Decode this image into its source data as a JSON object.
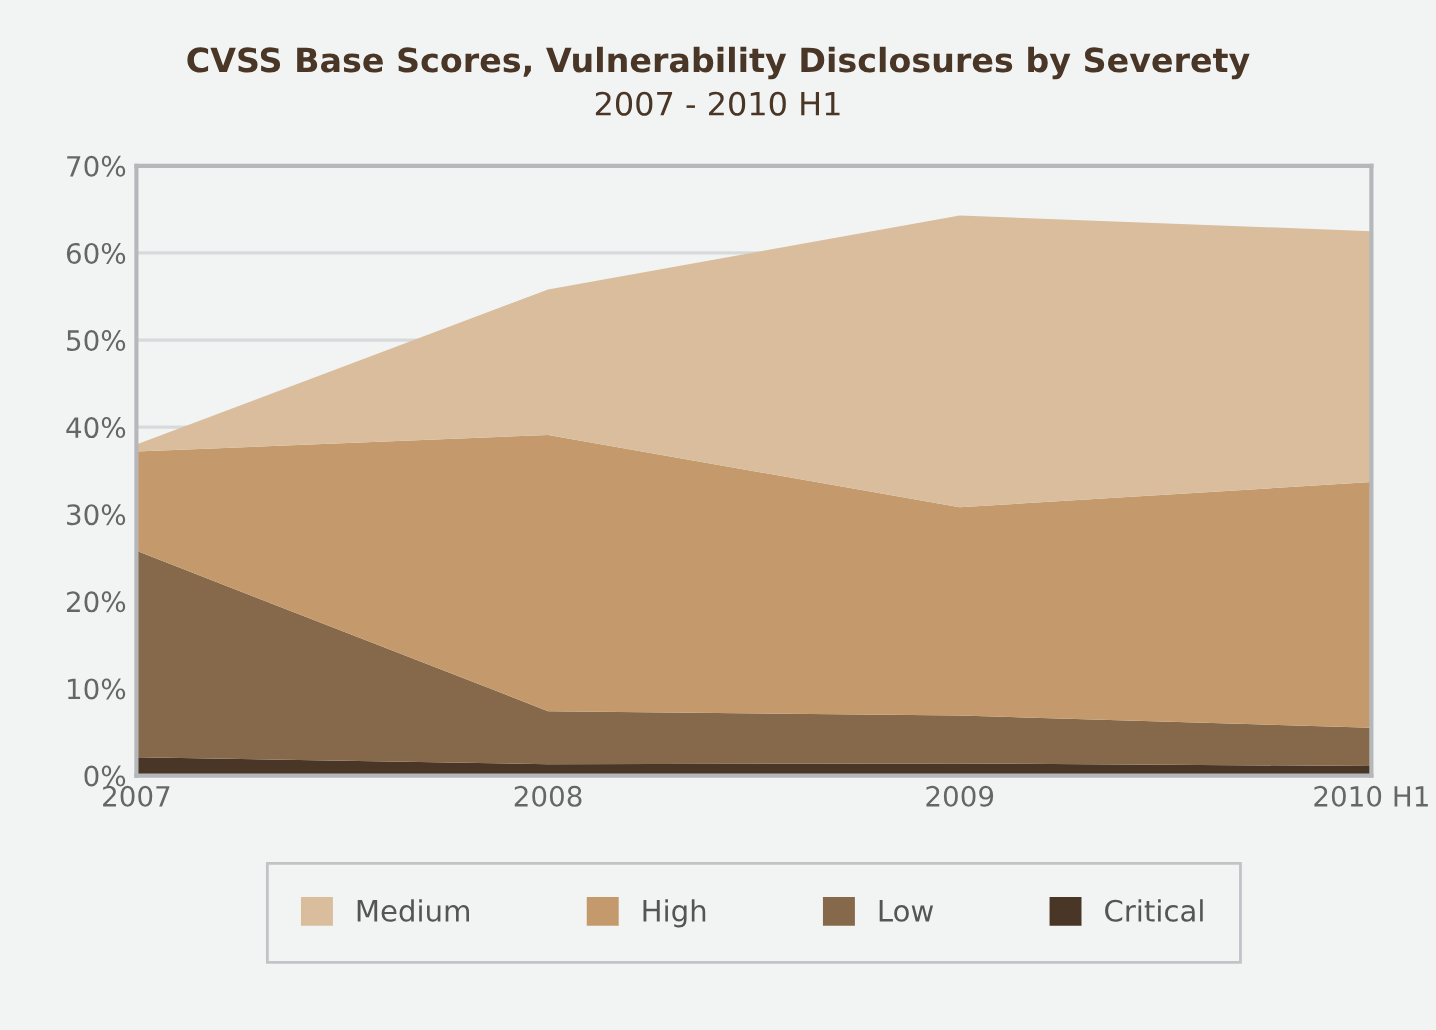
{
  "chart_data": {
    "type": "area",
    "stacked": true,
    "title": "CVSS Base Scores, Vulnerability Disclosures by Severety",
    "subtitle": "2007 - 2010 H1",
    "categories": [
      "2007",
      "2008",
      "2009",
      "2010 H1"
    ],
    "series": [
      {
        "name": "Critical",
        "color": "#4a3626",
        "values": [
          2.1,
          1.3,
          1.4,
          1.1
        ]
      },
      {
        "name": "Low",
        "color": "#86694b",
        "values": [
          23.7,
          6.1,
          5.5,
          4.4
        ]
      },
      {
        "name": "High",
        "color": "#c49a6c",
        "values": [
          11.4,
          31.7,
          23.9,
          28.2
        ]
      },
      {
        "name": "Medium",
        "color": "#d9bd9c",
        "values": [
          0.8,
          16.7,
          33.5,
          28.8
        ]
      }
    ],
    "ylim": [
      0,
      70
    ],
    "yticks": [
      {
        "value": 0,
        "label": "0%"
      },
      {
        "value": 10,
        "label": "10%"
      },
      {
        "value": 20,
        "label": "20%"
      },
      {
        "value": 30,
        "label": "30%"
      },
      {
        "value": 40,
        "label": "40%"
      },
      {
        "value": 50,
        "label": "50%"
      },
      {
        "value": 60,
        "label": "60%"
      },
      {
        "value": 70,
        "label": "70%"
      }
    ],
    "grid": "y",
    "legend": "bottom"
  }
}
